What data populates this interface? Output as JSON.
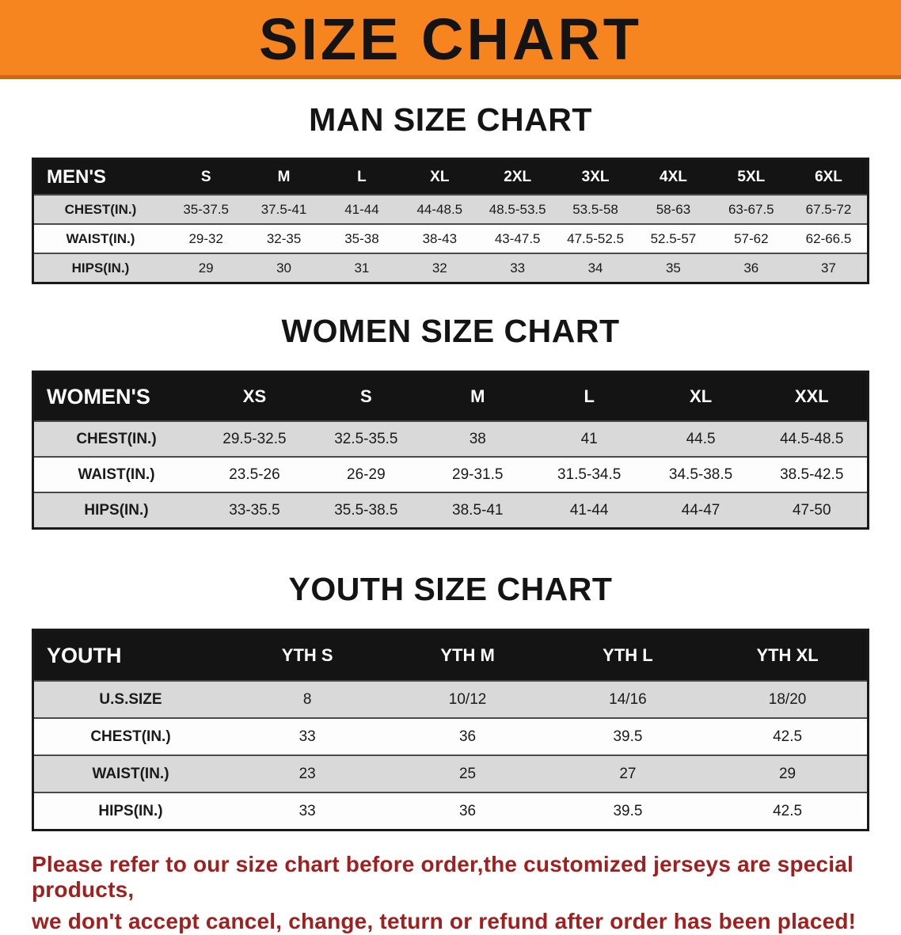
{
  "banner": {
    "title": "SIZE CHART",
    "background_color": "#f6841f",
    "text_color": "#141414"
  },
  "sections": [
    {
      "heading": "MAN SIZE CHART",
      "table": {
        "header": [
          "MEN'S",
          "S",
          "M",
          "L",
          "XL",
          "2XL",
          "3XL",
          "4XL",
          "5XL",
          "6XL"
        ],
        "rows": [
          {
            "label": "CHEST(IN.)",
            "values": [
              "35-37.5",
              "37.5-41",
              "41-44",
              "44-48.5",
              "48.5-53.5",
              "53.5-58",
              "58-63",
              "63-67.5",
              "67.5-72"
            ]
          },
          {
            "label": "WAIST(IN.)",
            "values": [
              "29-32",
              "32-35",
              "35-38",
              "38-43",
              "43-47.5",
              "47.5-52.5",
              "52.5-57",
              "57-62",
              "62-66.5"
            ]
          },
          {
            "label": "HIPS(IN.)",
            "values": [
              "29",
              "30",
              "31",
              "32",
              "33",
              "34",
              "35",
              "36",
              "37"
            ]
          }
        ]
      }
    },
    {
      "heading": "WOMEN SIZE CHART",
      "table": {
        "header": [
          "WOMEN'S",
          "XS",
          "S",
          "M",
          "L",
          "XL",
          "XXL"
        ],
        "rows": [
          {
            "label": "CHEST(IN.)",
            "values": [
              "29.5-32.5",
              "32.5-35.5",
              "38",
              "41",
              "44.5",
              "44.5-48.5"
            ]
          },
          {
            "label": "WAIST(IN.)",
            "values": [
              "23.5-26",
              "26-29",
              "29-31.5",
              "31.5-34.5",
              "34.5-38.5",
              "38.5-42.5"
            ]
          },
          {
            "label": "HIPS(IN.)",
            "values": [
              "33-35.5",
              "35.5-38.5",
              "38.5-41",
              "41-44",
              "44-47",
              "47-50"
            ]
          }
        ]
      }
    },
    {
      "heading": "YOUTH SIZE CHART",
      "table": {
        "header": [
          "YOUTH",
          "YTH S",
          "YTH M",
          "YTH L",
          "YTH XL"
        ],
        "rows": [
          {
            "label": "U.S.SIZE",
            "values": [
              "8",
              "10/12",
              "14/16",
              "18/20"
            ]
          },
          {
            "label": "CHEST(IN.)",
            "values": [
              "33",
              "36",
              "39.5",
              "42.5"
            ]
          },
          {
            "label": "WAIST(IN.)",
            "values": [
              "23",
              "25",
              "27",
              "29"
            ]
          },
          {
            "label": "HIPS(IN.)",
            "values": [
              "33",
              "36",
              "39.5",
              "42.5"
            ]
          }
        ]
      }
    }
  ],
  "disclaimer": {
    "line1": "Please refer to our size chart before order,the customized jerseys are special products,",
    "line2": "we don't accept cancel, change, teturn or refund after order has been placed!",
    "text_color": "#a02020"
  }
}
